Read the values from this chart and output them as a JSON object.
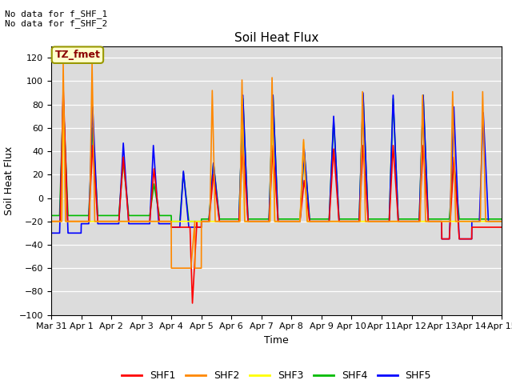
{
  "title": "Soil Heat Flux",
  "ylabel": "Soil Heat Flux",
  "xlabel": "Time",
  "annotations": [
    "No data for f_SHF_1",
    "No data for f_SHF_2"
  ],
  "legend_label": "TZ_fmet",
  "series_colors": {
    "SHF1": "#ff0000",
    "SHF2": "#ff8800",
    "SHF3": "#ffff00",
    "SHF4": "#00bb00",
    "SHF5": "#0000ff"
  },
  "ylim": [
    -100,
    130
  ],
  "yticks": [
    -100,
    -80,
    -60,
    -40,
    -20,
    0,
    20,
    40,
    60,
    80,
    100,
    120
  ],
  "xtick_labels": [
    "Mar 31",
    "Apr 1",
    "Apr 2",
    "Apr 3",
    "Apr 4",
    "Apr 5",
    "Apr 6",
    "Apr 7",
    "Apr 8",
    "Apr 9",
    "Apr 10",
    "Apr 11",
    "Apr 12",
    "Apr 13",
    "Apr 14",
    "Apr 15"
  ],
  "num_days": 15
}
